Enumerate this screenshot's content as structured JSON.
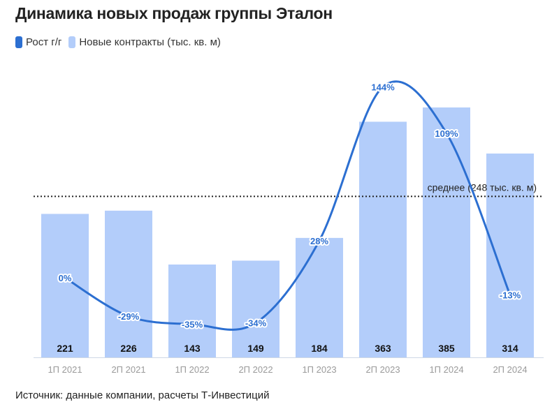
{
  "title": "Динамика новых продаж группы Эталон",
  "source": "Источник: данные компании, расчеты Т-Инвестиций",
  "colors": {
    "bar": "#b3cdfa",
    "line": "#2c6fd1",
    "text": "#222222",
    "axis": "#9a9a9a"
  },
  "legend": [
    {
      "label": "Рост г/г",
      "color": "#2c6fd1"
    },
    {
      "label": "Новые контракты (тыс. кв. м)",
      "color": "#b3cdfa"
    }
  ],
  "chart_data": {
    "type": "bar",
    "categories": [
      "1П 2021",
      "2П 2021",
      "1П 2022",
      "2П 2022",
      "1П 2023",
      "2П 2023",
      "1П 2024",
      "2П 2024"
    ],
    "series": [
      {
        "name": "Новые контракты (тыс. кв. м)",
        "type": "bar",
        "values": [
          221,
          226,
          143,
          149,
          184,
          363,
          385,
          314
        ],
        "labels": [
          "221",
          "226",
          "143",
          "149",
          "184",
          "363",
          "385",
          "314"
        ]
      },
      {
        "name": "Рост г/г",
        "type": "line",
        "values": [
          0,
          -29,
          -35,
          -34,
          28,
          144,
          109,
          -13
        ],
        "labels": [
          "0%",
          "-29%",
          "-35%",
          "-34%",
          "28%",
          "144%",
          "109%",
          "-13%"
        ]
      }
    ],
    "reference_line": {
      "value": 248,
      "label": "среднее (248 тыс. кв. м)"
    },
    "ylim": [
      0,
      420
    ],
    "y2lim": [
      -40,
      150
    ],
    "grid": false,
    "legend_position": "top-left"
  }
}
